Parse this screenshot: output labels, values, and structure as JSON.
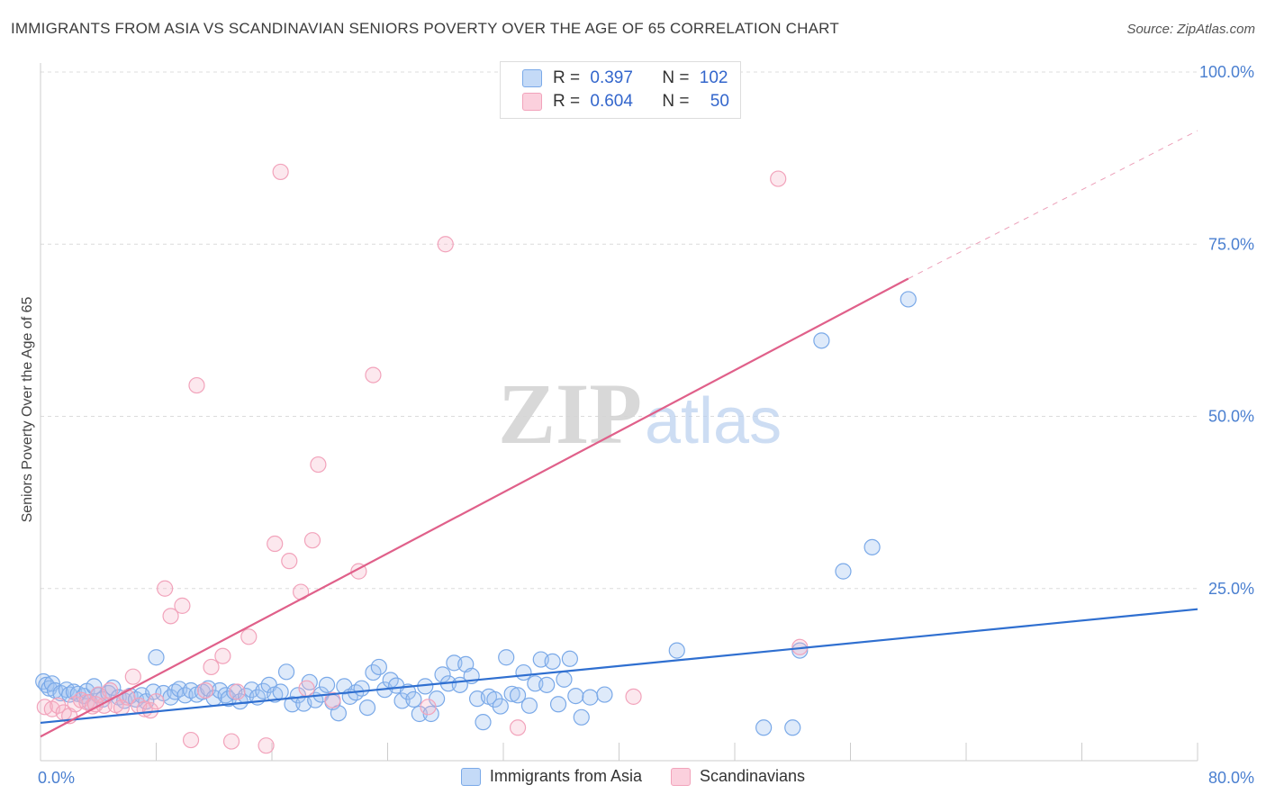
{
  "title": "IMMIGRANTS FROM ASIA VS SCANDINAVIAN SENIORS POVERTY OVER THE AGE OF 65 CORRELATION CHART",
  "source": "Source: ZipAtlas.com",
  "watermark": {
    "zip": "ZIP",
    "atlas": "atlas"
  },
  "legend_top": [
    {
      "r_label": "R =",
      "r": "0.397",
      "n_label": "N =",
      "n": "102"
    },
    {
      "r_label": "R =",
      "r": "0.604",
      "n_label": "N =",
      "n": "50"
    }
  ],
  "chart_data": {
    "type": "scatter",
    "title": "IMMIGRANTS FROM ASIA VS SCANDINAVIAN SENIORS POVERTY OVER THE AGE OF 65 CORRELATION CHART",
    "xlabel": "",
    "ylabel": "Seniors Poverty Over the Age of 65",
    "xlim": [
      0,
      80
    ],
    "ylim": [
      0,
      100
    ],
    "x_tick_labels": [
      "0.0%",
      "80.0%"
    ],
    "y_tick_labels": [
      "25.0%",
      "50.0%",
      "75.0%",
      "100.0%"
    ],
    "y_ticks": [
      25,
      50,
      75,
      100
    ],
    "grid": true,
    "legend_position": "bottom",
    "colors": {
      "asia": "#7aa9e8",
      "asia_line": "#2f6fd0",
      "scand": "#f2a3bb",
      "scand_line": "#e0608a",
      "axis_text": "#4a7fd0"
    },
    "series": [
      {
        "name": "Immigrants from Asia",
        "r": 0.397,
        "n": 102,
        "trend": [
          [
            0,
            5.5
          ],
          [
            80,
            22.0
          ]
        ],
        "points": [
          [
            0.2,
            11.5
          ],
          [
            0.4,
            11.0
          ],
          [
            0.6,
            10.5
          ],
          [
            0.8,
            11.2
          ],
          [
            1.0,
            10.2
          ],
          [
            1.4,
            9.8
          ],
          [
            1.8,
            10.3
          ],
          [
            2.0,
            9.6
          ],
          [
            2.3,
            10.0
          ],
          [
            2.6,
            9.7
          ],
          [
            3.0,
            9.4
          ],
          [
            3.2,
            10.1
          ],
          [
            3.4,
            8.5
          ],
          [
            3.7,
            10.8
          ],
          [
            4.0,
            9.5
          ],
          [
            4.3,
            8.9
          ],
          [
            4.7,
            9.8
          ],
          [
            5.0,
            10.6
          ],
          [
            5.4,
            9.2
          ],
          [
            5.8,
            8.7
          ],
          [
            6.2,
            9.4
          ],
          [
            6.6,
            8.9
          ],
          [
            7.0,
            9.5
          ],
          [
            7.3,
            8.6
          ],
          [
            7.8,
            10.0
          ],
          [
            8.0,
            15.0
          ],
          [
            8.5,
            9.8
          ],
          [
            9.0,
            9.2
          ],
          [
            9.3,
            10.0
          ],
          [
            9.6,
            10.4
          ],
          [
            10.0,
            9.5
          ],
          [
            10.4,
            10.2
          ],
          [
            10.8,
            9.6
          ],
          [
            11.2,
            10.0
          ],
          [
            11.6,
            10.5
          ],
          [
            12.0,
            9.1
          ],
          [
            12.4,
            10.2
          ],
          [
            12.8,
            9.5
          ],
          [
            13.0,
            9.0
          ],
          [
            13.4,
            10.0
          ],
          [
            13.8,
            8.6
          ],
          [
            14.2,
            9.4
          ],
          [
            14.6,
            10.3
          ],
          [
            15.0,
            9.2
          ],
          [
            15.4,
            10.1
          ],
          [
            15.8,
            11.0
          ],
          [
            16.2,
            9.6
          ],
          [
            16.6,
            10.0
          ],
          [
            17.0,
            12.9
          ],
          [
            17.4,
            8.2
          ],
          [
            17.8,
            9.5
          ],
          [
            18.2,
            8.3
          ],
          [
            18.6,
            11.4
          ],
          [
            19.0,
            8.8
          ],
          [
            19.4,
            9.6
          ],
          [
            19.8,
            11.0
          ],
          [
            20.2,
            8.5
          ],
          [
            20.6,
            6.9
          ],
          [
            21.0,
            10.8
          ],
          [
            21.4,
            9.3
          ],
          [
            21.8,
            9.9
          ],
          [
            22.2,
            10.5
          ],
          [
            22.6,
            7.7
          ],
          [
            23.0,
            12.8
          ],
          [
            23.4,
            13.6
          ],
          [
            23.8,
            10.3
          ],
          [
            24.2,
            11.7
          ],
          [
            24.6,
            10.9
          ],
          [
            25.0,
            8.7
          ],
          [
            25.4,
            10.0
          ],
          [
            25.8,
            8.9
          ],
          [
            26.2,
            6.8
          ],
          [
            26.6,
            10.8
          ],
          [
            27.0,
            6.8
          ],
          [
            27.4,
            9.0
          ],
          [
            27.8,
            12.5
          ],
          [
            28.2,
            11.2
          ],
          [
            28.6,
            14.2
          ],
          [
            29.0,
            11.0
          ],
          [
            29.4,
            14.0
          ],
          [
            29.8,
            12.3
          ],
          [
            30.2,
            9.0
          ],
          [
            30.6,
            5.6
          ],
          [
            31.0,
            9.3
          ],
          [
            31.4,
            8.9
          ],
          [
            31.8,
            7.9
          ],
          [
            32.2,
            15.0
          ],
          [
            32.6,
            9.7
          ],
          [
            33.0,
            9.5
          ],
          [
            33.4,
            12.8
          ],
          [
            33.8,
            8.0
          ],
          [
            34.2,
            11.2
          ],
          [
            34.6,
            14.7
          ],
          [
            35.0,
            11.0
          ],
          [
            35.4,
            14.4
          ],
          [
            35.8,
            8.2
          ],
          [
            36.2,
            11.8
          ],
          [
            36.6,
            14.8
          ],
          [
            37.0,
            9.4
          ],
          [
            37.4,
            6.3
          ],
          [
            38.0,
            9.2
          ],
          [
            39.0,
            9.6
          ],
          [
            50.0,
            4.8
          ],
          [
            52.0,
            4.8
          ],
          [
            54.0,
            61.0
          ],
          [
            55.5,
            27.5
          ],
          [
            57.5,
            31.0
          ],
          [
            60.0,
            67.0
          ],
          [
            52.5,
            16.0
          ],
          [
            44.0,
            16.0
          ]
        ]
      },
      {
        "name": "Scandinavians",
        "r": 0.604,
        "n": 50,
        "trend": [
          [
            0,
            3.5
          ],
          [
            60,
            70.0
          ]
        ],
        "trend_dashed": [
          [
            60,
            70.0
          ],
          [
            80,
            91.5
          ]
        ],
        "points": [
          [
            0.3,
            7.8
          ],
          [
            0.8,
            7.5
          ],
          [
            1.2,
            8.0
          ],
          [
            1.6,
            7.0
          ],
          [
            2.0,
            6.5
          ],
          [
            2.4,
            8.2
          ],
          [
            2.8,
            8.8
          ],
          [
            3.2,
            8.5
          ],
          [
            3.6,
            7.9
          ],
          [
            4.0,
            9.6
          ],
          [
            4.4,
            8.0
          ],
          [
            4.8,
            10.2
          ],
          [
            5.2,
            8.1
          ],
          [
            5.6,
            7.7
          ],
          [
            6.0,
            9.2
          ],
          [
            6.4,
            12.2
          ],
          [
            6.8,
            8.0
          ],
          [
            7.2,
            7.5
          ],
          [
            7.6,
            7.3
          ],
          [
            8.0,
            8.6
          ],
          [
            8.6,
            25.0
          ],
          [
            9.0,
            21.0
          ],
          [
            9.8,
            22.5
          ],
          [
            10.4,
            3.0
          ],
          [
            10.8,
            54.5
          ],
          [
            11.4,
            10.2
          ],
          [
            11.8,
            13.6
          ],
          [
            12.6,
            15.2
          ],
          [
            13.2,
            2.8
          ],
          [
            13.6,
            10.0
          ],
          [
            14.4,
            18.0
          ],
          [
            15.6,
            2.2
          ],
          [
            16.2,
            31.5
          ],
          [
            16.6,
            85.5
          ],
          [
            17.2,
            29.0
          ],
          [
            18.0,
            24.5
          ],
          [
            18.4,
            10.5
          ],
          [
            18.8,
            32.0
          ],
          [
            19.2,
            43.0
          ],
          [
            20.2,
            8.8
          ],
          [
            22.0,
            27.5
          ],
          [
            23.0,
            56.0
          ],
          [
            26.8,
            7.8
          ],
          [
            28.0,
            75.0
          ],
          [
            33.0,
            4.8
          ],
          [
            37.0,
            100.0
          ],
          [
            41.0,
            9.3
          ],
          [
            51.0,
            84.5
          ],
          [
            52.5,
            16.5
          ],
          [
            3.8,
            8.2
          ]
        ]
      }
    ]
  },
  "legend_bottom": [
    {
      "label": "Immigrants from Asia"
    },
    {
      "label": "Scandinavians"
    }
  ]
}
